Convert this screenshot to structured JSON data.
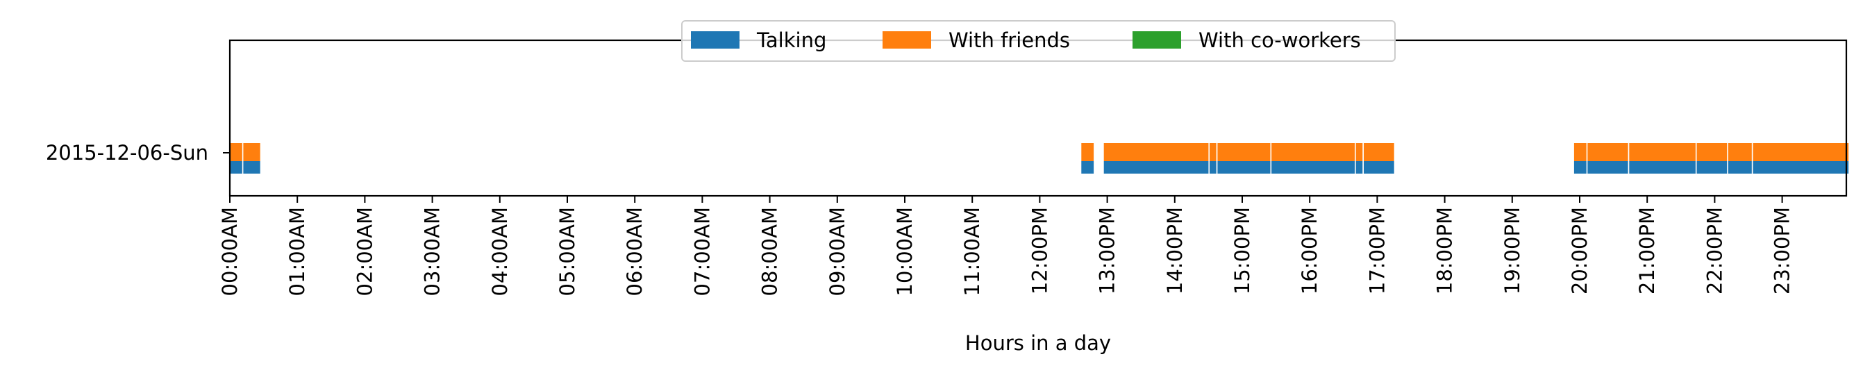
{
  "chart_data": {
    "type": "timeline",
    "title": "",
    "xlabel": "Hours in a day",
    "ylabel": "",
    "xlim_hours": [
      0,
      24
    ],
    "x_tick_labels": [
      "00:00AM",
      "01:00AM",
      "02:00AM",
      "03:00AM",
      "04:00AM",
      "05:00AM",
      "06:00AM",
      "07:00AM",
      "08:00AM",
      "09:00AM",
      "10:00AM",
      "11:00AM",
      "12:00PM",
      "13:00PM",
      "14:00PM",
      "15:00PM",
      "16:00PM",
      "17:00PM",
      "18:00PM",
      "19:00PM",
      "20:00PM",
      "21:00PM",
      "22:00PM",
      "23:00PM"
    ],
    "categories": [
      "2015-12-06-Sun"
    ],
    "legend_position": "top-center",
    "grid": false,
    "series": [
      {
        "name": "Talking",
        "color": "#1f77b4",
        "intervals": [
          {
            "day": "2015-12-06-Sun",
            "start": "00:00",
            "end": "00:11"
          },
          {
            "day": "2015-12-06-Sun",
            "start": "00:12",
            "end": "00:27"
          },
          {
            "day": "2015-12-06-Sun",
            "start": "12:37",
            "end": "12:48"
          },
          {
            "day": "2015-12-06-Sun",
            "start": "12:57",
            "end": "14:30"
          },
          {
            "day": "2015-12-06-Sun",
            "start": "14:31",
            "end": "14:37"
          },
          {
            "day": "2015-12-06-Sun",
            "start": "14:38",
            "end": "15:25"
          },
          {
            "day": "2015-12-06-Sun",
            "start": "15:26",
            "end": "16:40"
          },
          {
            "day": "2015-12-06-Sun",
            "start": "16:41",
            "end": "16:47"
          },
          {
            "day": "2015-12-06-Sun",
            "start": "16:48",
            "end": "17:15"
          },
          {
            "day": "2015-12-06-Sun",
            "start": "19:55",
            "end": "20:06"
          },
          {
            "day": "2015-12-06-Sun",
            "start": "20:07",
            "end": "20:43"
          },
          {
            "day": "2015-12-06-Sun",
            "start": "20:44",
            "end": "21:43"
          },
          {
            "day": "2015-12-06-Sun",
            "start": "21:44",
            "end": "22:11"
          },
          {
            "day": "2015-12-06-Sun",
            "start": "22:12",
            "end": "22:33"
          },
          {
            "day": "2015-12-06-Sun",
            "start": "22:34",
            "end": "23:59"
          }
        ]
      },
      {
        "name": "With friends",
        "color": "#ff7f0e",
        "intervals": [
          {
            "day": "2015-12-06-Sun",
            "start": "00:00",
            "end": "00:11"
          },
          {
            "day": "2015-12-06-Sun",
            "start": "00:12",
            "end": "00:27"
          },
          {
            "day": "2015-12-06-Sun",
            "start": "12:37",
            "end": "12:48"
          },
          {
            "day": "2015-12-06-Sun",
            "start": "12:57",
            "end": "14:30"
          },
          {
            "day": "2015-12-06-Sun",
            "start": "14:31",
            "end": "14:37"
          },
          {
            "day": "2015-12-06-Sun",
            "start": "14:38",
            "end": "15:25"
          },
          {
            "day": "2015-12-06-Sun",
            "start": "15:26",
            "end": "16:40"
          },
          {
            "day": "2015-12-06-Sun",
            "start": "16:41",
            "end": "16:47"
          },
          {
            "day": "2015-12-06-Sun",
            "start": "16:48",
            "end": "17:15"
          },
          {
            "day": "2015-12-06-Sun",
            "start": "19:55",
            "end": "20:06"
          },
          {
            "day": "2015-12-06-Sun",
            "start": "20:07",
            "end": "20:43"
          },
          {
            "day": "2015-12-06-Sun",
            "start": "20:44",
            "end": "21:43"
          },
          {
            "day": "2015-12-06-Sun",
            "start": "21:44",
            "end": "22:11"
          },
          {
            "day": "2015-12-06-Sun",
            "start": "22:12",
            "end": "22:33"
          },
          {
            "day": "2015-12-06-Sun",
            "start": "22:34",
            "end": "23:59"
          }
        ]
      },
      {
        "name": "With co-workers",
        "color": "#2ca02c",
        "intervals": []
      }
    ]
  }
}
